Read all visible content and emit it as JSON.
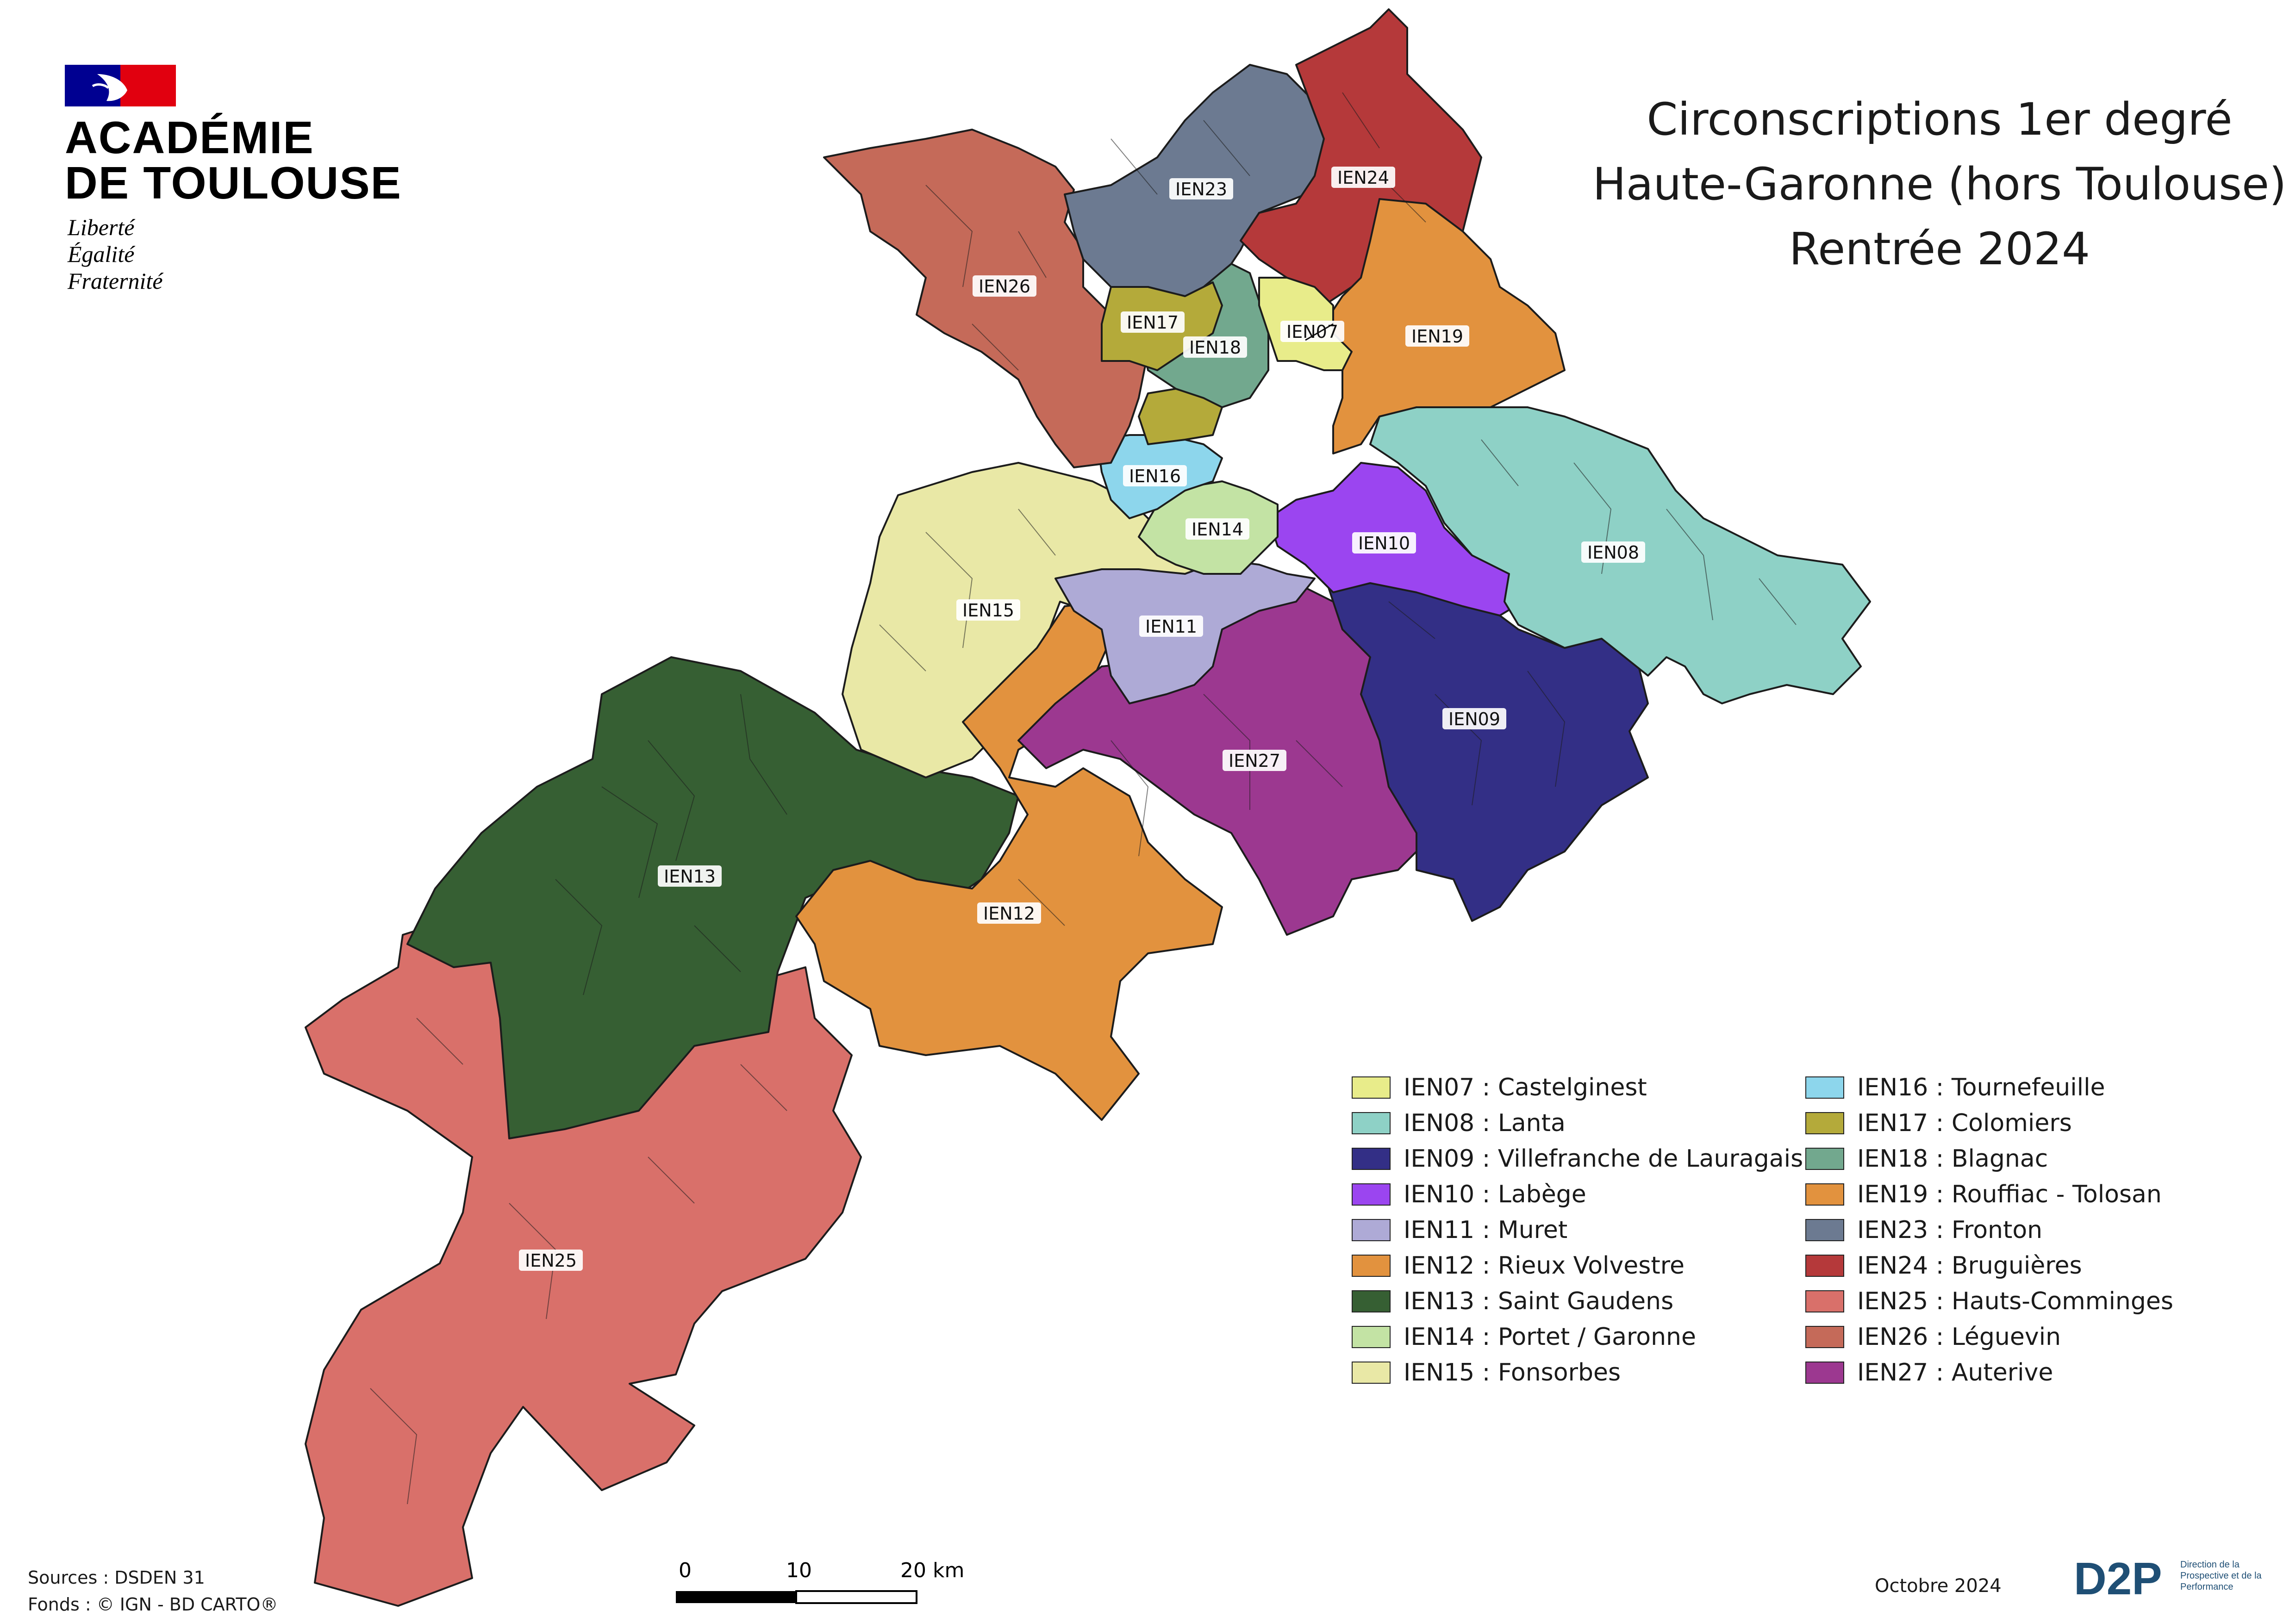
{
  "logo": {
    "name_line1": "ACADÉMIE",
    "name_line2": "DE TOULOUSE",
    "motto": [
      "Liberté",
      "Égalité",
      "Fraternité"
    ]
  },
  "title": {
    "line1": "Circonscriptions 1er degré",
    "line2": "Haute-Garonne (hors Toulouse)",
    "line3": "Rentrée 2024"
  },
  "regions": [
    {
      "code": "IEN07",
      "name": "Castelginest",
      "color": "#e8ec8a"
    },
    {
      "code": "IEN08",
      "name": "Lanta",
      "color": "#8ed1c6"
    },
    {
      "code": "IEN09",
      "name": "Villefranche de Lauragais",
      "color": "#332f86"
    },
    {
      "code": "IEN10",
      "name": "Labège",
      "color": "#9b45f0"
    },
    {
      "code": "IEN11",
      "name": "Muret",
      "color": "#aeaad6"
    },
    {
      "code": "IEN12",
      "name": "Rieux Volvestre",
      "color": "#e2923e"
    },
    {
      "code": "IEN13",
      "name": "Saint Gaudens",
      "color": "#365f33"
    },
    {
      "code": "IEN14",
      "name": "Portet / Garonne",
      "color": "#c3e3a4"
    },
    {
      "code": "IEN15",
      "name": "Fonsorbes",
      "color": "#e9e8a6"
    },
    {
      "code": "IEN16",
      "name": "Tournefeuille",
      "color": "#8dd6ec"
    },
    {
      "code": "IEN17",
      "name": "Colomiers",
      "color": "#b4aa3a"
    },
    {
      "code": "IEN18",
      "name": "Blagnac",
      "color": "#72a88e"
    },
    {
      "code": "IEN19",
      "name": "Rouffiac - Tolosan",
      "color": "#e2923e"
    },
    {
      "code": "IEN23",
      "name": "Fronton",
      "color": "#6c7a91"
    },
    {
      "code": "IEN24",
      "name": "Bruguières",
      "color": "#b5393a"
    },
    {
      "code": "IEN25",
      "name": "Hauts-Comminges",
      "color": "#d9706a"
    },
    {
      "code": "IEN26",
      "name": "Léguevin",
      "color": "#c56a59"
    },
    {
      "code": "IEN27",
      "name": "Auterive",
      "color": "#9c3890"
    }
  ],
  "legend_separator": " : ",
  "sources": {
    "line1": "Sources : DSDEN 31",
    "line2": "Fonds : © IGN  -  BD CARTO®"
  },
  "scale_bar": {
    "labels": [
      "0",
      "10",
      "20 km"
    ]
  },
  "date": "Octobre 2024",
  "d2p": {
    "acronym": "D2P",
    "full_name": [
      "Direction de la",
      "Prospective et de la",
      "Performance"
    ],
    "color": "#1f4f75"
  },
  "republic_flag_colors": {
    "blue": "#000091",
    "red": "#e1000f"
  }
}
